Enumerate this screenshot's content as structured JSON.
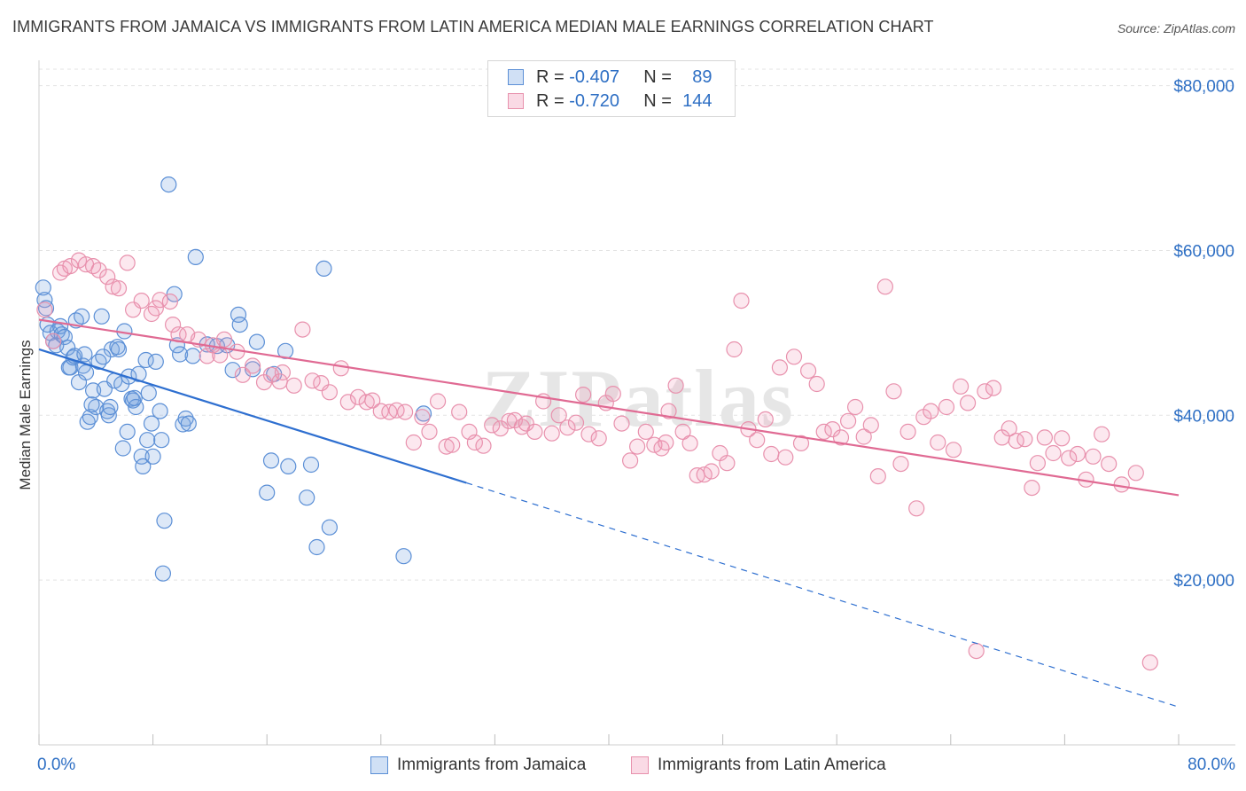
{
  "title": "IMMIGRANTS FROM JAMAICA VS IMMIGRANTS FROM LATIN AMERICA MEDIAN MALE EARNINGS CORRELATION CHART",
  "source": "Source: ZipAtlas.com",
  "watermark": "ZIPatlas",
  "colors": {
    "blue": "#5b8fd6",
    "blue_fill": "rgba(120,165,225,0.25)",
    "blue_line": "#2e6fd0",
    "pink": "#e891ad",
    "pink_fill": "rgba(240,150,180,0.22)",
    "pink_line": "#e06a93",
    "axis_label": "#2e6fc4",
    "grid": "#e3e3e3"
  },
  "legend": {
    "row1": {
      "r_label": "R =",
      "r_value": "-0.407",
      "n_label": "N =",
      "n_value": "89"
    },
    "row2": {
      "r_label": "R =",
      "r_value": "-0.720",
      "n_label": "N =",
      "n_value": "144"
    }
  },
  "bottom_legend": {
    "series1": "Immigrants from Jamaica",
    "series2": "Immigrants from Latin America"
  },
  "x_axis": {
    "min_label": "0.0%",
    "max_label": "80.0%"
  },
  "chart_data": {
    "type": "scatter",
    "title": "IMMIGRANTS FROM JAMAICA VS IMMIGRANTS FROM LATIN AMERICA MEDIAN MALE EARNINGS CORRELATION CHART",
    "xlabel": "",
    "ylabel": "Median Male Earnings",
    "xlim": [
      0,
      80
    ],
    "ylim": [
      0,
      82000
    ],
    "y_ticks": [
      {
        "value": 20000,
        "label": "$20,000"
      },
      {
        "value": 40000,
        "label": "$40,000"
      },
      {
        "value": 60000,
        "label": "$60,000"
      },
      {
        "value": 80000,
        "label": "$80,000"
      }
    ],
    "grid": true,
    "legend_position": "top-center",
    "series": [
      {
        "name": "Immigrants from Jamaica",
        "color": "blue",
        "r": -0.407,
        "n": 89,
        "trend": {
          "x": [
            0,
            30
          ],
          "y": [
            48000,
            31800
          ],
          "dashed_to_x": 80,
          "dashed_to_y": 4600
        },
        "points": [
          [
            0.3,
            55500
          ],
          [
            0.4,
            54000
          ],
          [
            0.5,
            53000
          ],
          [
            0.6,
            51000
          ],
          [
            0.8,
            50000
          ],
          [
            1.0,
            49000
          ],
          [
            1.2,
            48500
          ],
          [
            1.3,
            50200
          ],
          [
            1.5,
            50800
          ],
          [
            1.6,
            49800
          ],
          [
            1.8,
            49500
          ],
          [
            2.0,
            48200
          ],
          [
            2.1,
            45800
          ],
          [
            2.2,
            45800
          ],
          [
            2.4,
            47000
          ],
          [
            2.5,
            47200
          ],
          [
            2.6,
            51500
          ],
          [
            2.8,
            44000
          ],
          [
            3.0,
            52000
          ],
          [
            3.1,
            46000
          ],
          [
            3.2,
            47400
          ],
          [
            3.3,
            45200
          ],
          [
            3.4,
            39200
          ],
          [
            3.6,
            39800
          ],
          [
            3.8,
            43000
          ],
          [
            4.0,
            41000
          ],
          [
            4.2,
            46500
          ],
          [
            4.4,
            52000
          ],
          [
            4.6,
            43200
          ],
          [
            4.8,
            40500
          ],
          [
            4.9,
            40000
          ],
          [
            5.0,
            41000
          ],
          [
            5.1,
            48000
          ],
          [
            5.3,
            44200
          ],
          [
            5.5,
            48300
          ],
          [
            5.6,
            48000
          ],
          [
            5.8,
            43800
          ],
          [
            5.9,
            36000
          ],
          [
            6.0,
            50200
          ],
          [
            6.2,
            38000
          ],
          [
            6.3,
            44700
          ],
          [
            6.5,
            42000
          ],
          [
            6.6,
            41800
          ],
          [
            6.8,
            41000
          ],
          [
            7.0,
            45000
          ],
          [
            7.2,
            35000
          ],
          [
            7.3,
            33800
          ],
          [
            7.5,
            46700
          ],
          [
            7.6,
            37000
          ],
          [
            7.7,
            42700
          ],
          [
            7.9,
            39000
          ],
          [
            8.0,
            35000
          ],
          [
            8.2,
            46500
          ],
          [
            8.5,
            40500
          ],
          [
            8.6,
            37000
          ],
          [
            8.7,
            20800
          ],
          [
            8.8,
            27200
          ],
          [
            9.1,
            68000
          ],
          [
            9.5,
            54700
          ],
          [
            9.7,
            48500
          ],
          [
            9.9,
            47400
          ],
          [
            10.1,
            38900
          ],
          [
            10.3,
            39600
          ],
          [
            10.5,
            39000
          ],
          [
            10.8,
            47200
          ],
          [
            11.0,
            59200
          ],
          [
            12.5,
            48400
          ],
          [
            13.2,
            48500
          ],
          [
            13.6,
            45500
          ],
          [
            14.0,
            52200
          ],
          [
            14.1,
            51000
          ],
          [
            15.0,
            45600
          ],
          [
            15.3,
            48900
          ],
          [
            16.0,
            30600
          ],
          [
            16.3,
            34500
          ],
          [
            16.5,
            45000
          ],
          [
            17.3,
            47800
          ],
          [
            17.5,
            33800
          ],
          [
            18.8,
            30000
          ],
          [
            19.1,
            34000
          ],
          [
            19.5,
            24000
          ],
          [
            20.0,
            57800
          ],
          [
            20.4,
            26400
          ],
          [
            25.6,
            22900
          ],
          [
            27.0,
            40200
          ],
          [
            3.7,
            41300
          ],
          [
            6.7,
            42100
          ],
          [
            11.8,
            48600
          ],
          [
            4.5,
            47100
          ]
        ]
      },
      {
        "name": "Immigrants from Latin America",
        "color": "pink",
        "r": -0.72,
        "n": 144,
        "trend": {
          "x": [
            0,
            80
          ],
          "y": [
            51600,
            30300
          ]
        },
        "points": [
          [
            0.4,
            52800
          ],
          [
            1.0,
            49000
          ],
          [
            1.5,
            57300
          ],
          [
            1.8,
            57800
          ],
          [
            2.2,
            58100
          ],
          [
            2.8,
            58800
          ],
          [
            3.3,
            58300
          ],
          [
            3.8,
            58100
          ],
          [
            4.2,
            57600
          ],
          [
            4.8,
            56800
          ],
          [
            5.2,
            55600
          ],
          [
            5.6,
            55400
          ],
          [
            6.2,
            58500
          ],
          [
            6.6,
            52800
          ],
          [
            7.2,
            53900
          ],
          [
            7.9,
            52300
          ],
          [
            8.5,
            54000
          ],
          [
            9.2,
            53800
          ],
          [
            9.4,
            51000
          ],
          [
            9.8,
            49800
          ],
          [
            10.4,
            49800
          ],
          [
            11.2,
            49200
          ],
          [
            11.8,
            47200
          ],
          [
            12.2,
            48500
          ],
          [
            13.0,
            49200
          ],
          [
            13.9,
            47700
          ],
          [
            14.3,
            44900
          ],
          [
            15.0,
            46000
          ],
          [
            15.8,
            44000
          ],
          [
            16.3,
            44900
          ],
          [
            17.1,
            45200
          ],
          [
            17.9,
            43600
          ],
          [
            18.5,
            50400
          ],
          [
            19.2,
            44200
          ],
          [
            19.8,
            43900
          ],
          [
            20.4,
            42800
          ],
          [
            21.2,
            45700
          ],
          [
            21.7,
            41600
          ],
          [
            22.4,
            42200
          ],
          [
            23.0,
            41600
          ],
          [
            23.4,
            41800
          ],
          [
            24.0,
            40500
          ],
          [
            24.6,
            40400
          ],
          [
            25.1,
            40600
          ],
          [
            25.7,
            40400
          ],
          [
            26.3,
            36700
          ],
          [
            26.9,
            39800
          ],
          [
            27.4,
            38000
          ],
          [
            28.0,
            41700
          ],
          [
            28.6,
            36200
          ],
          [
            29.0,
            36400
          ],
          [
            29.5,
            40400
          ],
          [
            30.2,
            38000
          ],
          [
            30.6,
            36700
          ],
          [
            31.2,
            36300
          ],
          [
            31.8,
            38800
          ],
          [
            32.4,
            38400
          ],
          [
            33.0,
            39300
          ],
          [
            33.4,
            39400
          ],
          [
            33.9,
            38600
          ],
          [
            34.2,
            39000
          ],
          [
            34.8,
            38000
          ],
          [
            35.4,
            41700
          ],
          [
            36.0,
            37800
          ],
          [
            36.5,
            40000
          ],
          [
            37.1,
            38500
          ],
          [
            37.7,
            39100
          ],
          [
            38.2,
            42500
          ],
          [
            38.6,
            37700
          ],
          [
            39.3,
            37200
          ],
          [
            39.8,
            41500
          ],
          [
            40.3,
            42600
          ],
          [
            40.9,
            39000
          ],
          [
            41.5,
            34500
          ],
          [
            42.0,
            36200
          ],
          [
            42.6,
            38000
          ],
          [
            43.2,
            36400
          ],
          [
            43.7,
            36000
          ],
          [
            44.2,
            40500
          ],
          [
            44.7,
            43600
          ],
          [
            45.2,
            38000
          ],
          [
            45.7,
            36600
          ],
          [
            46.2,
            32700
          ],
          [
            46.7,
            32800
          ],
          [
            47.2,
            33200
          ],
          [
            47.8,
            35400
          ],
          [
            48.3,
            34200
          ],
          [
            48.8,
            48000
          ],
          [
            49.3,
            53900
          ],
          [
            49.8,
            38300
          ],
          [
            50.4,
            37000
          ],
          [
            51.0,
            39500
          ],
          [
            51.4,
            35300
          ],
          [
            52.0,
            45800
          ],
          [
            52.4,
            34900
          ],
          [
            53.0,
            47100
          ],
          [
            53.5,
            36600
          ],
          [
            54.0,
            45400
          ],
          [
            54.6,
            43800
          ],
          [
            55.1,
            38000
          ],
          [
            55.7,
            38300
          ],
          [
            56.3,
            37300
          ],
          [
            56.8,
            39300
          ],
          [
            57.3,
            41000
          ],
          [
            57.9,
            37400
          ],
          [
            58.4,
            38800
          ],
          [
            58.9,
            32600
          ],
          [
            59.4,
            55600
          ],
          [
            60.0,
            42900
          ],
          [
            60.5,
            34100
          ],
          [
            61.0,
            38000
          ],
          [
            61.6,
            28700
          ],
          [
            62.1,
            39800
          ],
          [
            62.6,
            40500
          ],
          [
            63.1,
            36700
          ],
          [
            63.7,
            41000
          ],
          [
            64.2,
            35800
          ],
          [
            64.7,
            43500
          ],
          [
            65.2,
            41500
          ],
          [
            65.8,
            11400
          ],
          [
            66.4,
            42900
          ],
          [
            67.0,
            43300
          ],
          [
            67.6,
            37300
          ],
          [
            68.1,
            38400
          ],
          [
            68.6,
            36900
          ],
          [
            69.2,
            37100
          ],
          [
            69.7,
            31200
          ],
          [
            70.1,
            34200
          ],
          [
            70.6,
            37300
          ],
          [
            71.2,
            35400
          ],
          [
            71.8,
            37200
          ],
          [
            72.3,
            34800
          ],
          [
            72.9,
            35300
          ],
          [
            73.5,
            32200
          ],
          [
            74.0,
            35000
          ],
          [
            74.6,
            37700
          ],
          [
            75.1,
            34100
          ],
          [
            76.0,
            31600
          ],
          [
            77.0,
            33000
          ],
          [
            78.0,
            10000
          ],
          [
            12.7,
            47300
          ],
          [
            16.9,
            44100
          ],
          [
            8.2,
            53000
          ],
          [
            44.0,
            36700
          ]
        ]
      }
    ]
  }
}
